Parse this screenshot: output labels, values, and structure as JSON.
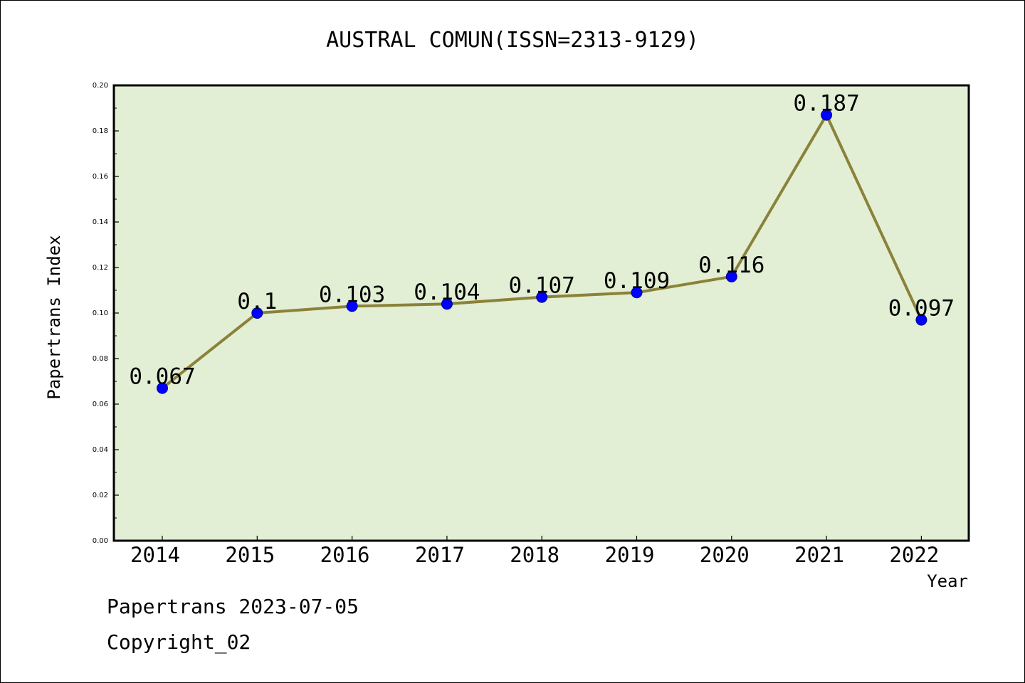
{
  "chart_data": {
    "type": "line",
    "title": "AUSTRAL COMUN(ISSN=2313-9129)",
    "xlabel": "Year",
    "ylabel": "Papertrans Index",
    "categories": [
      "2014",
      "2015",
      "2016",
      "2017",
      "2018",
      "2019",
      "2020",
      "2021",
      "2022"
    ],
    "series": [
      {
        "values": [
          0.067,
          0.1,
          0.103,
          0.104,
          0.107,
          0.109,
          0.116,
          0.187,
          0.097
        ],
        "labels": [
          "0.067",
          "0.1",
          "0.103",
          "0.104",
          "0.107",
          "0.109",
          "0.116",
          "0.187",
          "0.097"
        ]
      }
    ],
    "ylim": [
      0,
      0.2
    ],
    "yticks": [
      "0.00",
      "0.02",
      "0.04",
      "0.06",
      "0.08",
      "0.10",
      "0.12",
      "0.14",
      "0.16",
      "0.18",
      "0.20"
    ],
    "grid": false,
    "colors": {
      "plot_background": "#e2efd4",
      "line": "#8b8239",
      "marker": "#0000ff",
      "axis": "#000000"
    }
  },
  "footer": {
    "date_line": "Papertrans 2023-07-05",
    "copyright": "Copyright_02"
  }
}
